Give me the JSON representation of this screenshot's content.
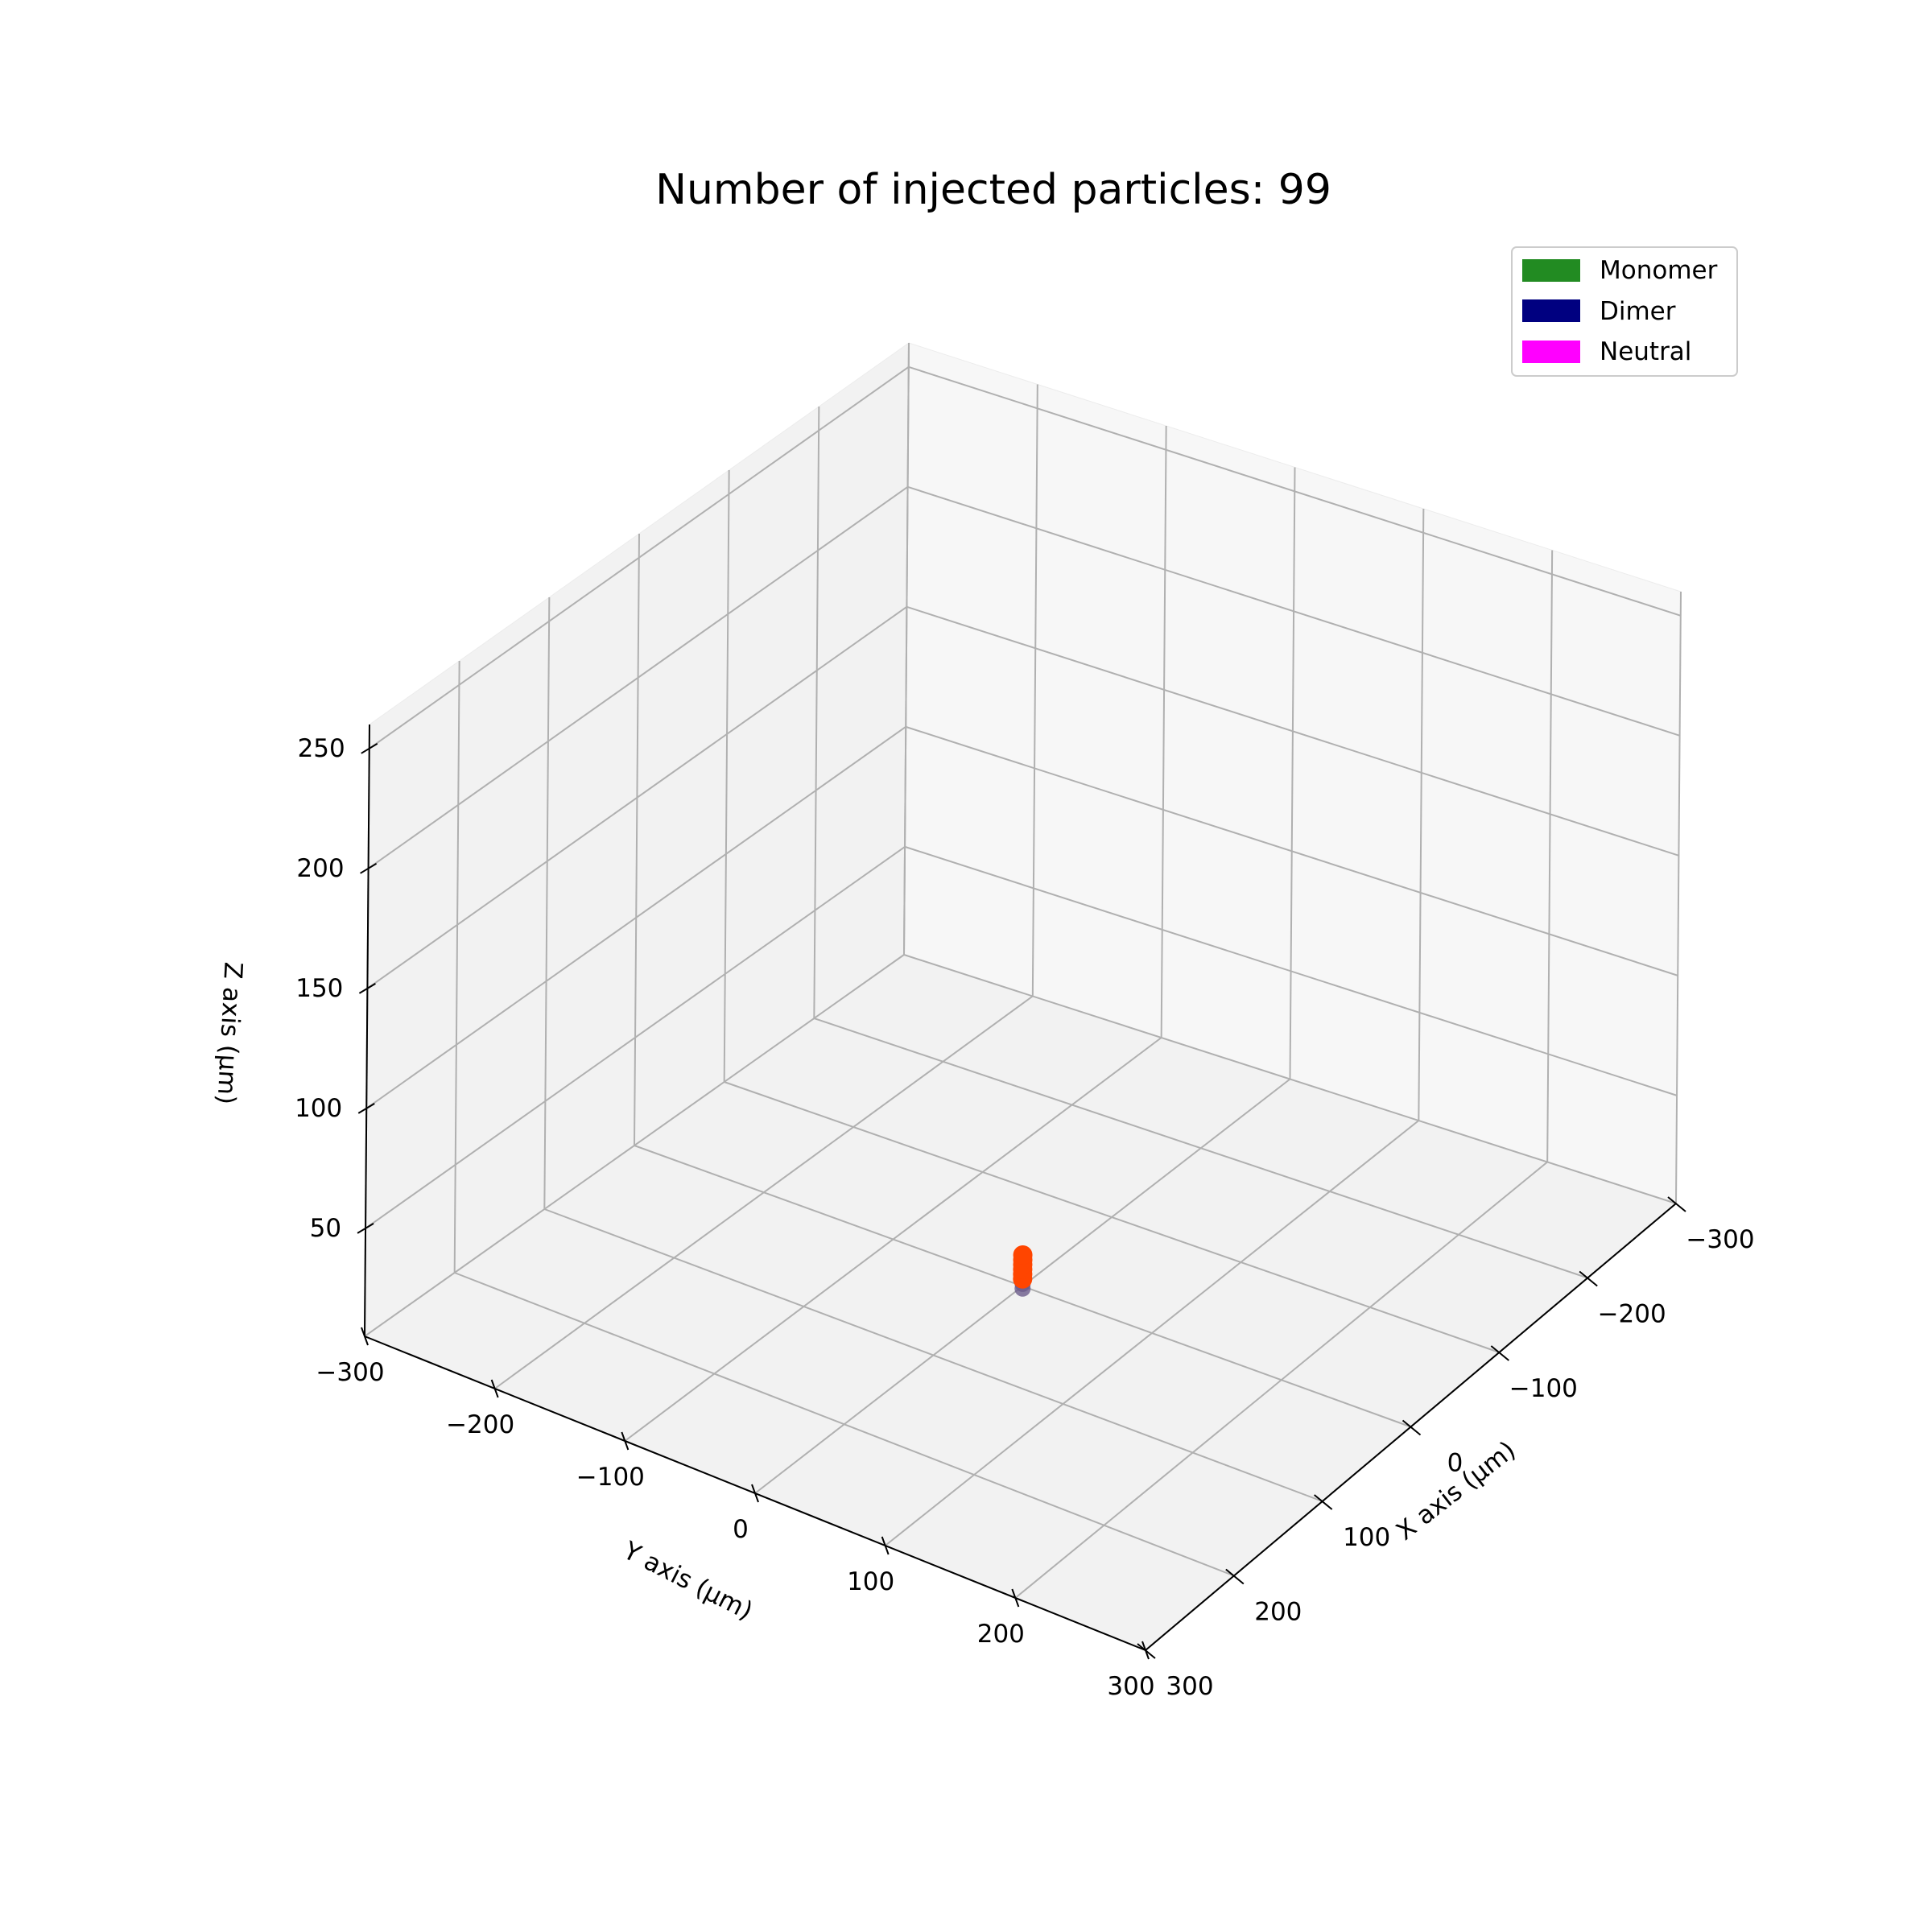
{
  "chart_data": {
    "type": "scatter",
    "projection": "3d",
    "title": "Number of injected particles: 99",
    "xlabel": "X axis (μm)",
    "ylabel": "Y axis (μm)",
    "zlabel": "Z axis (μm)",
    "xlim": [
      -300,
      300
    ],
    "ylim": [
      -300,
      300
    ],
    "zlim": [
      5,
      260
    ],
    "xticks": [
      "−300",
      "−200",
      "−100",
      "0",
      "100",
      "200",
      "300"
    ],
    "yticks": [
      "−300",
      "−200",
      "−100",
      "0",
      "100",
      "200",
      "300"
    ],
    "zticks": [
      "50",
      "100",
      "150",
      "200",
      "250"
    ],
    "xtick_values": [
      -300,
      -200,
      -100,
      0,
      100,
      200,
      300
    ],
    "ytick_values": [
      -300,
      -200,
      -100,
      0,
      100,
      200,
      300
    ],
    "ztick_values": [
      50,
      100,
      150,
      200,
      250
    ],
    "grid": true,
    "legend": {
      "placement": "top-right",
      "entries": [
        {
          "label": "Monomer",
          "color": "#228b22"
        },
        {
          "label": "Dimer",
          "color": "#000080"
        },
        {
          "label": "Neutral",
          "color": "#ff00ff"
        }
      ]
    },
    "particle_color": "#ff4500",
    "particle_shadow_color": "#6a5a8a",
    "particles": [
      {
        "x": 0,
        "y": 0,
        "z": 8
      },
      {
        "x": 0,
        "y": 0,
        "z": 10
      },
      {
        "x": 0,
        "y": 0,
        "z": 12
      },
      {
        "x": 0,
        "y": 0,
        "z": 14
      },
      {
        "x": 0,
        "y": 0,
        "z": 16
      },
      {
        "x": 0,
        "y": 0,
        "z": 18
      }
    ]
  }
}
